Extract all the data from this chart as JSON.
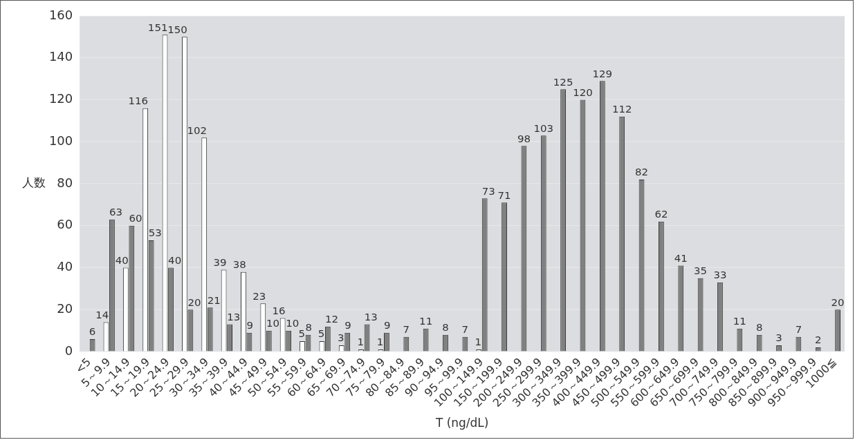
{
  "chart_data": {
    "type": "bar",
    "xlabel": "T (ng/dL)",
    "ylabel": "人数",
    "categories": [
      "<5",
      "5～9.9",
      "10～14.9",
      "15～19.9",
      "20～24.9",
      "25～29.9",
      "30～34.9",
      "35～39.9",
      "40～44.9",
      "45～49.9",
      "50～54.9",
      "55～59.9",
      "60～64.9",
      "65～69.9",
      "70～74.9",
      "75～79.9",
      "80～84.9",
      "85～89.9",
      "90～94.9",
      "95～99.9",
      "100～149.9",
      "150～199.9",
      "200～249.9",
      "250～299.9",
      "300～349.9",
      "350～399.9",
      "400～449.9",
      "450～499.9",
      "500～549.9",
      "550～599.9",
      "600～649.9",
      "650～699.9",
      "700～749.9",
      "750～799.9",
      "800～849.9",
      "850～899.9",
      "900～949.9",
      "950～999.9",
      "1000≦"
    ],
    "series": [
      {
        "color": "#ffffff",
        "values": [
          null,
          14,
          40,
          116,
          151,
          150,
          102,
          39,
          38,
          23,
          16,
          5,
          5,
          3,
          1,
          1,
          null,
          null,
          null,
          null,
          1,
          null,
          null,
          null,
          null,
          null,
          null,
          null,
          null,
          null,
          null,
          null,
          null,
          null,
          null,
          null,
          null,
          null,
          null
        ]
      },
      {
        "color": "#808080",
        "values": [
          6,
          63,
          60,
          53,
          40,
          20,
          21,
          13,
          9,
          10,
          10,
          8,
          12,
          9,
          13,
          9,
          7,
          11,
          8,
          7,
          73,
          71,
          98,
          103,
          125,
          120,
          129,
          112,
          82,
          62,
          41,
          35,
          33,
          11,
          8,
          3,
          7,
          2,
          20
        ]
      }
    ],
    "ylim": [
      0,
      160
    ],
    "yticks": [
      0,
      20,
      40,
      60,
      80,
      100,
      120,
      140,
      160
    ],
    "grid": "y",
    "legend": false,
    "data_labels": true
  }
}
